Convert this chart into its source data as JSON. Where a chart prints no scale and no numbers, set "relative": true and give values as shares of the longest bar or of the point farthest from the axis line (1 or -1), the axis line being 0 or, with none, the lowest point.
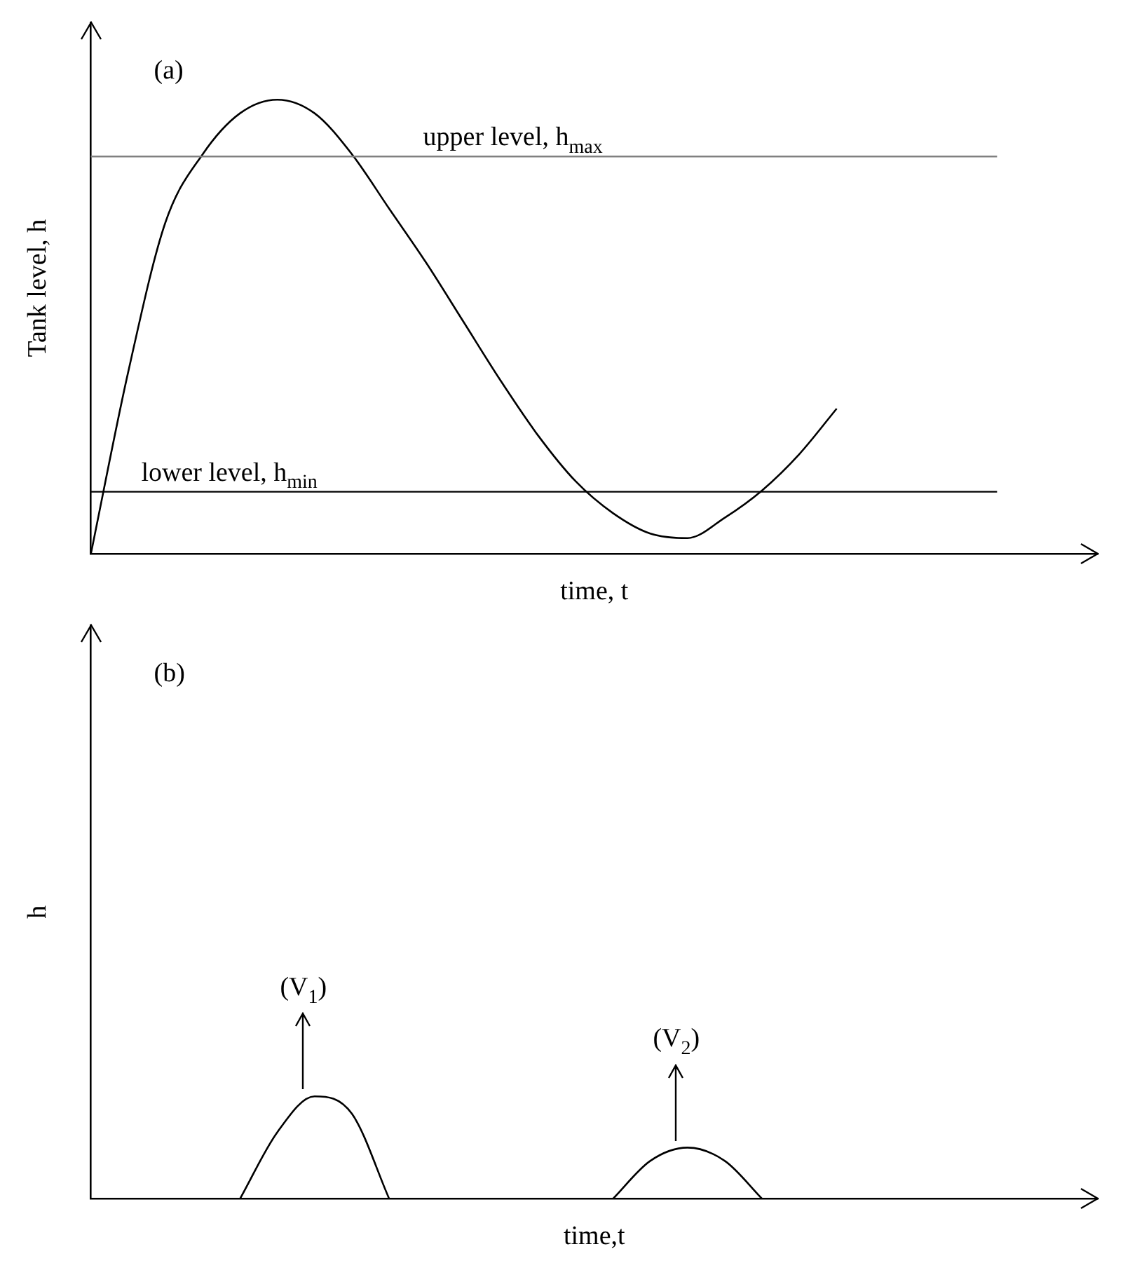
{
  "chart_data": [
    {
      "type": "line",
      "title": "(a)",
      "xlabel": "time, t",
      "ylabel": "Tank level, h",
      "relative": true,
      "categories": [
        null,
        null,
        null,
        null,
        null,
        null,
        null,
        null,
        null,
        null,
        null,
        null,
        null,
        null,
        null,
        null,
        null,
        null,
        null,
        null,
        null,
        null,
        null,
        null,
        null,
        null,
        null,
        null
      ],
      "series": [
        {
          "color": "#000000",
          "values": [
            0,
            0.4,
            0.73,
            0.88,
            0.97,
            1,
            0.97,
            0.88,
            0.76,
            0.64,
            0.51,
            0.38,
            0.26,
            0.16,
            0.09,
            0.045,
            0.035,
            0.08,
            0.14,
            0.22,
            0.32,
            null,
            null,
            null,
            null,
            null,
            null,
            null
          ]
        }
      ],
      "ref_lines": [
        {
          "axis": "y",
          "value": 0.875,
          "label": "upper level, h$_{max}$",
          "color": "#808080"
        },
        {
          "axis": "y",
          "value": 0.137,
          "label": "lower level, h$_{min}$",
          "color": "#000000"
        }
      ],
      "legend": false,
      "grid": false,
      "tick_labels": false,
      "marker": "none",
      "line_style": "solid"
    },
    {
      "type": "line",
      "title": "(b)",
      "xlabel": "time,t",
      "ylabel": "h",
      "relative": true,
      "categories": [
        null,
        null,
        null,
        null,
        null,
        null,
        null,
        null,
        null,
        null,
        null,
        null,
        null,
        null,
        null,
        null,
        null,
        null,
        null,
        null,
        null,
        null,
        null,
        null,
        null,
        null,
        null,
        null
      ],
      "series": [
        {
          "color": "#000000",
          "values": [
            null,
            null,
            null,
            null,
            0,
            0.65,
            1,
            0.83,
            0,
            null,
            null,
            null,
            null,
            null,
            0,
            0.37,
            0.5,
            0.37,
            0,
            null,
            null,
            null,
            null,
            null,
            null,
            null,
            null,
            null
          ]
        }
      ],
      "annotations": [
        "(V$_{1}$)",
        "(V$_{2}$)"
      ],
      "legend": false,
      "grid": false,
      "tick_labels": false,
      "marker": "none",
      "line_style": "solid"
    }
  ]
}
